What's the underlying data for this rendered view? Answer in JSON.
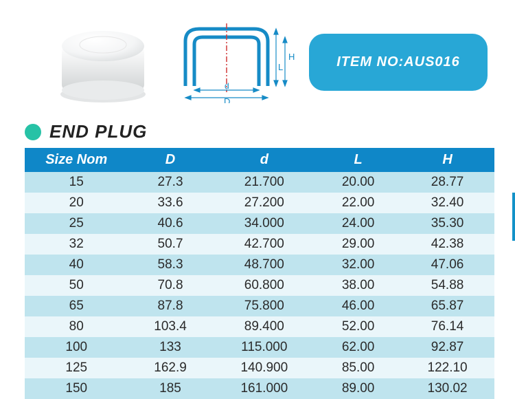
{
  "item_label": "ITEM NO:AUS016",
  "title": "END PLUG",
  "colors": {
    "badge_bg": "#28a7d6",
    "badge_text": "#ffffff",
    "bullet": "#27c2a6",
    "title_text": "#222222",
    "header_bg": "#0f87c8",
    "header_text": "#ffffff",
    "row_alt1": "#bfe4ee",
    "row_alt2": "#eaf6fa",
    "cell_text": "#2a2a2a",
    "page_bg": "#ffffff",
    "vbar": "#1392c8",
    "diagram_stroke": "#168bc6",
    "diagram_centerline": "#d23a3a"
  },
  "table": {
    "columns": [
      "Size Nom",
      "D",
      "d",
      "L",
      "H"
    ],
    "col_widths_pct": [
      22,
      18,
      22,
      18,
      20
    ],
    "rows": [
      [
        "15",
        "27.3",
        "21.700",
        "20.00",
        "28.77"
      ],
      [
        "20",
        "33.6",
        "27.200",
        "22.00",
        "32.40"
      ],
      [
        "25",
        "40.6",
        "34.000",
        "24.00",
        "35.30"
      ],
      [
        "32",
        "50.7",
        "42.700",
        "29.00",
        "42.38"
      ],
      [
        "40",
        "58.3",
        "48.700",
        "32.00",
        "47.06"
      ],
      [
        "50",
        "70.8",
        "60.800",
        "38.00",
        "54.88"
      ],
      [
        "65",
        "87.8",
        "75.800",
        "46.00",
        "65.87"
      ],
      [
        "80",
        "103.4",
        "89.400",
        "52.00",
        "76.14"
      ],
      [
        "100",
        "133",
        "115.000",
        "62.00",
        "92.87"
      ],
      [
        "125",
        "162.9",
        "140.900",
        "85.00",
        "122.10"
      ],
      [
        "150",
        "185",
        "161.000",
        "89.00",
        "130.02"
      ]
    ],
    "header_fontsize": 20,
    "cell_fontsize": 19
  },
  "diagram": {
    "labels": {
      "H": "H",
      "L": "L",
      "d": "d",
      "D": "D"
    }
  }
}
